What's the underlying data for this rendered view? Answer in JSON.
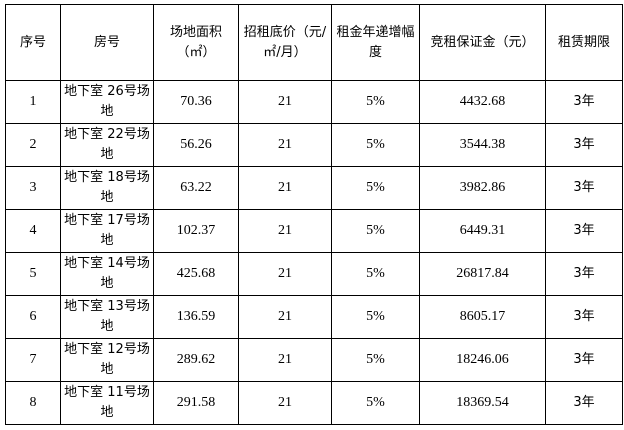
{
  "headers": [
    "序号",
    "房号",
    "场地面积（㎡）",
    "招租底价（元/㎡/月）",
    "租金年递增幅度",
    "竞租保证金（元）",
    "租赁期限"
  ],
  "rows": [
    {
      "no": "1",
      "room": "地下室 26号场地",
      "area": "70.36",
      "price": "21",
      "increase": "5%",
      "deposit": "4432.68",
      "term": "3年"
    },
    {
      "no": "2",
      "room": "地下室 22号场地",
      "area": "56.26",
      "price": "21",
      "increase": "5%",
      "deposit": "3544.38",
      "term": "3年"
    },
    {
      "no": "3",
      "room": "地下室 18号场地",
      "area": "63.22",
      "price": "21",
      "increase": "5%",
      "deposit": "3982.86",
      "term": "3年"
    },
    {
      "no": "4",
      "room": "地下室 17号场地",
      "area": "102.37",
      "price": "21",
      "increase": "5%",
      "deposit": "6449.31",
      "term": "3年"
    },
    {
      "no": "5",
      "room": "地下室 14号场地",
      "area": "425.68",
      "price": "21",
      "increase": "5%",
      "deposit": "26817.84",
      "term": "3年"
    },
    {
      "no": "6",
      "room": "地下室 13号场地",
      "area": "136.59",
      "price": "21",
      "increase": "5%",
      "deposit": "8605.17",
      "term": "3年"
    },
    {
      "no": "7",
      "room": "地下室 12号场地",
      "area": "289.62",
      "price": "21",
      "increase": "5%",
      "deposit": "18246.06",
      "term": "3年"
    },
    {
      "no": "8",
      "room": "地下室 11号场地",
      "area": "291.58",
      "price": "21",
      "increase": "5%",
      "deposit": "18369.54",
      "term": "3年"
    }
  ]
}
